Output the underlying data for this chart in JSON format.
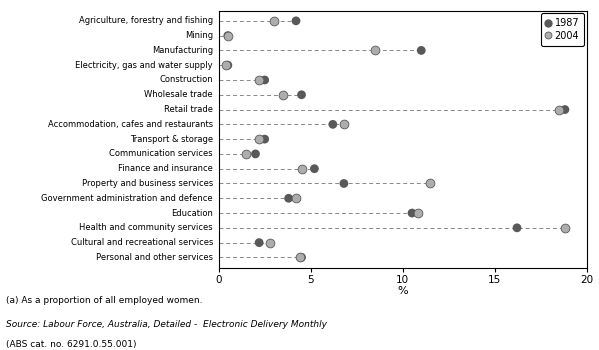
{
  "categories": [
    "Agriculture, forestry and fishing",
    "Mining",
    "Manufacturing",
    "Electricity, gas and water supply",
    "Construction",
    "Wholesale trade",
    "Retail trade",
    "Accommodation, cafes and restaurants",
    "Transport & storage",
    "Communication services",
    "Finance and insurance",
    "Property and business services",
    "Government administration and defence",
    "Education",
    "Health and community services",
    "Cultural and recreational services",
    "Personal and other services"
  ],
  "values_1987": [
    4.2,
    0.5,
    11.0,
    0.5,
    2.5,
    4.5,
    18.8,
    6.2,
    2.5,
    2.0,
    5.2,
    6.8,
    3.8,
    10.5,
    16.2,
    2.2,
    4.5
  ],
  "values_2004": [
    3.0,
    0.5,
    8.5,
    0.4,
    2.2,
    3.5,
    18.5,
    6.8,
    2.2,
    1.5,
    4.5,
    11.5,
    4.2,
    10.8,
    18.8,
    2.8,
    4.4
  ],
  "color_1987": "#595959",
  "color_2004": "#adadad",
  "xlim": [
    0,
    20
  ],
  "xticks": [
    0,
    5,
    10,
    15,
    20
  ],
  "xlabel": "%",
  "footnote1": "(a) As a proportion of all employed women.",
  "footnote2": "Source: Labour Force, Australia, Detailed -  Electronic Delivery Monthly",
  "footnote3": "(ABS cat. no. 6291.0.55.001)",
  "legend_1987": "1987",
  "legend_2004": "2004"
}
